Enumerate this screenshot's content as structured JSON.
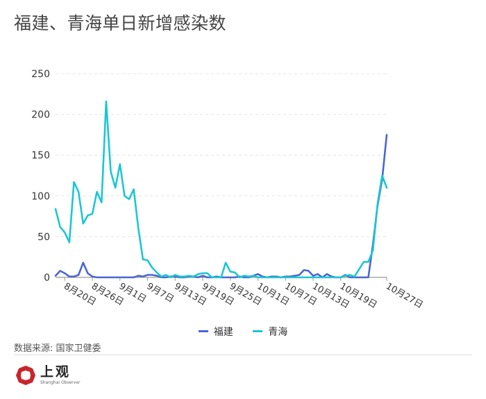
{
  "title": "福建、青海单日新增感染数",
  "source": "数据来源: 国家卫健委",
  "logo": {
    "cn": "上观",
    "en": "Shanghai Observer"
  },
  "colors": {
    "fujian": "#4a66d0",
    "qinghai": "#1cc6d2"
  },
  "chart_data": {
    "type": "line",
    "title": "福建、青海单日新增感染数",
    "xlabel": "",
    "ylabel": "",
    "ylim": [
      0,
      250
    ],
    "yticks": [
      0,
      50,
      100,
      150,
      200,
      250
    ],
    "x_start": "8月18日",
    "x_end": "10月27日",
    "x_tick_labels": [
      "8月20日",
      "8月26日",
      "9月1日",
      "9月7日",
      "9月13日",
      "9月19日",
      "9月25日",
      "10月1日",
      "10月7日",
      "10月13日",
      "10月19日",
      "10月27日"
    ],
    "legend_position": "bottom-center",
    "grid": "horizontal-dashed",
    "series": [
      {
        "name": "福建",
        "color": "#4a66d0",
        "values": [
          2,
          8,
          5,
          1,
          1,
          3,
          18,
          5,
          1,
          0,
          0,
          0,
          0,
          0,
          0,
          0,
          0,
          0,
          2,
          1,
          3,
          3,
          2,
          0,
          0,
          1,
          1,
          0,
          0,
          1,
          1,
          0,
          2,
          0,
          0,
          1,
          0,
          0,
          0,
          0,
          1,
          0,
          0,
          2,
          4,
          1,
          0,
          1,
          1,
          0,
          1,
          1,
          2,
          3,
          9,
          8,
          2,
          4,
          0,
          4,
          1,
          0,
          0,
          3,
          0,
          0,
          0,
          0,
          0,
          40,
          88,
          120,
          175
        ]
      },
      {
        "name": "青海",
        "color": "#1cc6d2",
        "values": [
          84,
          62,
          55,
          43,
          117,
          105,
          66,
          76,
          78,
          105,
          92,
          216,
          130,
          110,
          139,
          100,
          96,
          108,
          60,
          22,
          21,
          12,
          6,
          1,
          3,
          0,
          3,
          1,
          1,
          2,
          1,
          4,
          5,
          5,
          0,
          0,
          0,
          18,
          7,
          6,
          0,
          2,
          1,
          2,
          0,
          0,
          0,
          0,
          0,
          0,
          0,
          0,
          0,
          0,
          0,
          0,
          0,
          0,
          0,
          0,
          0,
          0,
          0,
          2,
          3,
          1,
          10,
          19,
          19,
          33,
          90,
          125,
          110
        ]
      }
    ]
  }
}
